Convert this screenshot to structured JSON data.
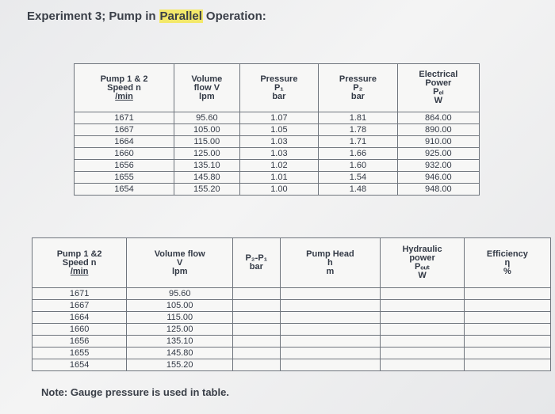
{
  "title_parts": [
    "Experiment 3; Pump in",
    "Parallel",
    "Operation:"
  ],
  "table1": {
    "headers": [
      [
        "Pump 1 & 2",
        "Speed n",
        "/min"
      ],
      [
        "Volume",
        "flow V",
        "lpm"
      ],
      [
        "Pressure",
        "P₁",
        "bar"
      ],
      [
        "Pressure",
        "P₂",
        "bar"
      ],
      [
        "Electrical",
        "Power",
        "Pₑₗ",
        "W"
      ]
    ],
    "rows": [
      [
        "1671",
        "95.60",
        "1.07",
        "1.81",
        "864.00"
      ],
      [
        "1667",
        "105.00",
        "1.05",
        "1.78",
        "890.00"
      ],
      [
        "1664",
        "115.00",
        "1.03",
        "1.71",
        "910.00"
      ],
      [
        "1660",
        "125.00",
        "1.03",
        "1.66",
        "925.00"
      ],
      [
        "1656",
        "135.10",
        "1.02",
        "1.60",
        "932.00"
      ],
      [
        "1655",
        "145.80",
        "1.01",
        "1.54",
        "946.00"
      ],
      [
        "1654",
        "155.20",
        "1.00",
        "1.48",
        "948.00"
      ]
    ]
  },
  "table2": {
    "headers": [
      [
        "Pump 1 &2",
        "Speed n",
        "/min"
      ],
      [
        "Volume flow",
        "V",
        "lpm"
      ],
      [
        "P₂-P₁",
        "bar"
      ],
      [
        "Pump Head",
        "h",
        "m"
      ],
      [
        "Hydraulic",
        "power",
        "Pₒᵤₜ",
        "W"
      ],
      [
        "Efficiency",
        "η",
        "%"
      ]
    ],
    "rows": [
      [
        "1671",
        "95.60"
      ],
      [
        "1667",
        "105.00"
      ],
      [
        "1664",
        "115.00"
      ],
      [
        "1660",
        "125.00"
      ],
      [
        "1656",
        "135.10"
      ],
      [
        "1655",
        "145.80"
      ],
      [
        "1654",
        "155.20"
      ]
    ]
  },
  "note": "Note: Gauge pressure is used in table."
}
